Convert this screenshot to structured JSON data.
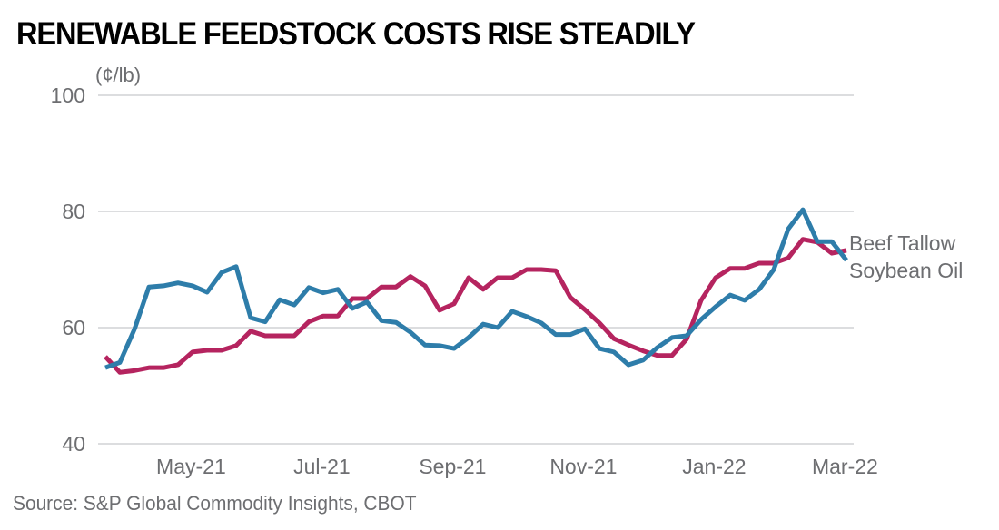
{
  "chart_data": {
    "type": "line",
    "title": "RENEWABLE FEEDSTOCK COSTS RISE STEADILY",
    "ylabel": "(¢/lb)",
    "xlabel": "",
    "ylim": [
      40,
      100
    ],
    "yticks": [
      40,
      60,
      80,
      100
    ],
    "grid": true,
    "legend_placement": "right-end-labels",
    "x_ticks": [
      {
        "label": "May-21",
        "index": 5.9
      },
      {
        "label": "Jul-21",
        "index": 14.9
      },
      {
        "label": "Sep-21",
        "index": 23.9
      },
      {
        "label": "Nov-21",
        "index": 32.9
      },
      {
        "label": "Jan-22",
        "index": 41.9
      },
      {
        "label": "Mar-22",
        "index": 50.9
      }
    ],
    "frequency": "weekly",
    "series": [
      {
        "name": "Beef Tallow",
        "color": "#B5245F",
        "values": [
          55.0,
          52.3,
          52.6,
          53.1,
          53.1,
          53.6,
          55.8,
          56.1,
          56.1,
          56.9,
          59.4,
          58.6,
          58.6,
          58.6,
          61.0,
          62.0,
          62.0,
          65.0,
          65.0,
          67.0,
          67.0,
          68.8,
          67.2,
          63.0,
          64.1,
          68.6,
          66.6,
          68.6,
          68.6,
          70.0,
          70.0,
          69.8,
          65.2,
          63.1,
          60.8,
          58.1,
          57.0,
          56.0,
          55.2,
          55.2,
          58.0,
          64.7,
          68.6,
          70.2,
          70.2,
          71.1,
          71.1,
          72.0,
          75.2,
          74.7,
          72.8,
          73.3
        ]
      },
      {
        "name": "Soybean Oil",
        "color": "#2E7DAA",
        "values": [
          53.1,
          54.0,
          59.7,
          67.0,
          67.2,
          67.7,
          67.2,
          66.1,
          69.5,
          70.5,
          61.7,
          61.0,
          64.8,
          63.9,
          66.9,
          66.0,
          66.6,
          63.3,
          64.4,
          61.2,
          60.9,
          59.2,
          57.0,
          56.9,
          56.4,
          58.3,
          60.6,
          60.0,
          62.8,
          61.9,
          60.8,
          58.8,
          58.8,
          59.8,
          56.4,
          55.8,
          53.6,
          54.4,
          56.6,
          58.3,
          58.6,
          61.4,
          63.6,
          65.6,
          64.7,
          66.6,
          70.0,
          77.0,
          80.3,
          74.8,
          74.8,
          71.6
        ]
      }
    ]
  },
  "source": "Source: S&P Global Commodity Insights, CBOT"
}
